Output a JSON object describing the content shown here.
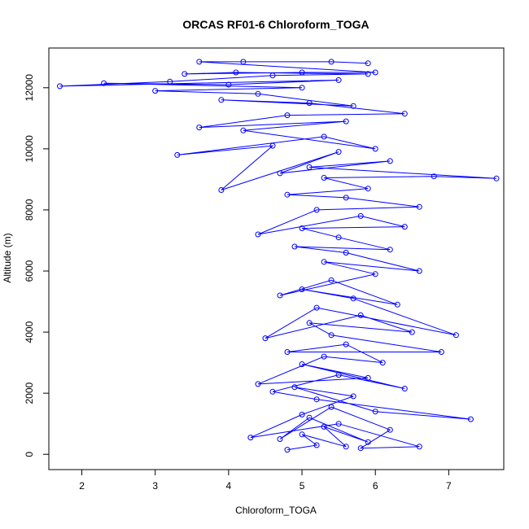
{
  "chart_data": {
    "type": "line",
    "title": "ORCAS RF01-6 Chloroform_TOGA",
    "xlabel": "Chloroform_TOGA",
    "ylabel": "Altitude (m)",
    "xlim": [
      1.55,
      7.75
    ],
    "ylim": [
      -500,
      13300
    ],
    "xticks": [
      "2",
      "3",
      "4",
      "5",
      "6",
      "7"
    ],
    "xtick_values": [
      2,
      3,
      4,
      5,
      6,
      7
    ],
    "yticks": [
      "0",
      "2000",
      "4000",
      "6000",
      "8000",
      "10000",
      "12000"
    ],
    "ytick_values": [
      0,
      2000,
      4000,
      6000,
      8000,
      10000,
      12000
    ],
    "grid": false,
    "marker": "open-circle",
    "color": "#0000ff",
    "series": [
      {
        "values": [
          [
            4.8,
            150
          ],
          [
            5.2,
            300
          ],
          [
            5.0,
            650
          ],
          [
            5.6,
            250
          ],
          [
            5.3,
            900
          ],
          [
            5.9,
            400
          ],
          [
            5.1,
            1200
          ],
          [
            4.7,
            500
          ],
          [
            5.4,
            1550
          ],
          [
            6.2,
            800
          ],
          [
            5.8,
            200
          ],
          [
            6.6,
            250
          ],
          [
            5.5,
            1000
          ],
          [
            4.3,
            550
          ],
          [
            5.0,
            1300
          ],
          [
            5.7,
            1900
          ],
          [
            4.9,
            2200
          ],
          [
            6.0,
            1400
          ],
          [
            7.3,
            1150
          ],
          [
            5.2,
            1800
          ],
          [
            4.6,
            2050
          ],
          [
            5.5,
            2600
          ],
          [
            6.4,
            2150
          ],
          [
            5.0,
            2950
          ],
          [
            5.9,
            2500
          ],
          [
            4.4,
            2300
          ],
          [
            5.3,
            3200
          ],
          [
            6.1,
            3000
          ],
          [
            5.6,
            3600
          ],
          [
            4.8,
            3350
          ],
          [
            6.9,
            3350
          ],
          [
            5.4,
            3900
          ],
          [
            5.1,
            4300
          ],
          [
            6.5,
            4000
          ],
          [
            5.8,
            4550
          ],
          [
            4.5,
            3800
          ],
          [
            5.2,
            4800
          ],
          [
            7.1,
            3900
          ],
          [
            5.7,
            5100
          ],
          [
            5.0,
            5400
          ],
          [
            6.3,
            4900
          ],
          [
            5.4,
            5700
          ],
          [
            4.7,
            5200
          ],
          [
            6.0,
            5900
          ],
          [
            5.3,
            6300
          ],
          [
            6.6,
            6000
          ],
          [
            5.6,
            6600
          ],
          [
            4.9,
            6800
          ],
          [
            6.2,
            6700
          ],
          [
            5.5,
            7100
          ],
          [
            5.0,
            7400
          ],
          [
            6.4,
            7450
          ],
          [
            5.8,
            7800
          ],
          [
            4.4,
            7200
          ],
          [
            5.2,
            8000
          ],
          [
            6.6,
            8100
          ],
          [
            5.6,
            8400
          ],
          [
            4.8,
            8500
          ],
          [
            5.9,
            8700
          ],
          [
            5.3,
            9050
          ],
          [
            6.8,
            9100
          ],
          [
            7.65,
            9030
          ],
          [
            5.1,
            9400
          ],
          [
            6.2,
            9600
          ],
          [
            4.7,
            9200
          ],
          [
            5.5,
            9900
          ],
          [
            3.9,
            8650
          ],
          [
            4.6,
            10100
          ],
          [
            3.3,
            9800
          ],
          [
            5.3,
            10400
          ],
          [
            6.0,
            10000
          ],
          [
            4.2,
            10600
          ],
          [
            5.6,
            10900
          ],
          [
            3.6,
            10700
          ],
          [
            4.8,
            11100
          ],
          [
            6.4,
            11150
          ],
          [
            5.1,
            11500
          ],
          [
            3.9,
            11600
          ],
          [
            5.7,
            11400
          ],
          [
            4.4,
            11800
          ],
          [
            3.0,
            11900
          ],
          [
            5.0,
            12000
          ],
          [
            2.3,
            12150
          ],
          [
            4.0,
            12100
          ],
          [
            5.5,
            12250
          ],
          [
            1.7,
            12050
          ],
          [
            3.2,
            12200
          ],
          [
            4.6,
            12400
          ],
          [
            5.9,
            12450
          ],
          [
            4.1,
            12500
          ],
          [
            3.4,
            12450
          ],
          [
            5.0,
            12500
          ],
          [
            6.0,
            12500
          ],
          [
            3.6,
            12850
          ],
          [
            4.2,
            12850
          ],
          [
            5.4,
            12850
          ],
          [
            5.9,
            12800
          ]
        ]
      }
    ]
  }
}
